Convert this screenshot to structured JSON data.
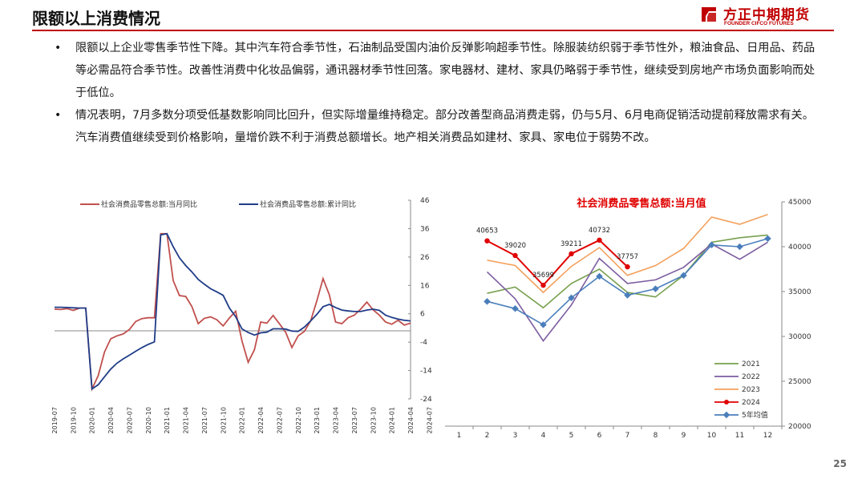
{
  "header": {
    "title": "限额以上消费情况",
    "logo_cn": "方正中期期货",
    "logo_en": "FOUNDER CIFCO FUTURES"
  },
  "bullets": [
    {
      "text": "限额以上企业零售季节性下降。其中汽车符合季节性，石油制品受国内油价反弹影响超季节性。除服装纺织弱于季节性外，粮油食品、日用品、药品等必需品符合季节性。改善性消费中化妆品偏弱，通讯器材季节性回落。家电器材、建材、家具仍略弱于季节性，继续受到房地产市场负面影响而处于低位。"
    },
    {
      "text": "情况表明，7月多数分项受低基数影响同比回升，但实际增量维持稳定。部分改善型商品消费走弱，仍与5月、6月电商促销活动提前释放需求有关。汽车消费值继续受到价格影响，量增价跌不利于消费总额增长。地产相关消费品如建材、家具、家电位于弱势不改。"
    }
  ],
  "page_number": "25",
  "chart_data": [
    {
      "type": "line",
      "title": "",
      "x_ticks": [
        "2019-07",
        "2019-10",
        "2020-01",
        "2020-04",
        "2020-07",
        "2020-10",
        "2021-01",
        "2021-04",
        "2021-07",
        "2021-10",
        "2022-01",
        "2022-04",
        "2022-07",
        "2022-10",
        "2023-01",
        "2023-04",
        "2023-07",
        "2023-10",
        "2024-01",
        "2024-04",
        "2024-07"
      ],
      "ylim": [
        -24,
        46
      ],
      "y_ticks": [
        "46",
        "36",
        "26",
        "16",
        "6",
        "-4",
        "-14",
        "-24"
      ],
      "y_axis_side": "right",
      "legend_position": "top",
      "series": [
        {
          "name": "社会消费品零售总额:当月同比",
          "color": "#c0504d",
          "values": [
            7.6,
            7.5,
            7.8,
            7.2,
            8.0,
            8.0,
            -20.5,
            -15.8,
            -7.5,
            -2.8,
            -1.8,
            -1.1,
            0.5,
            3.3,
            4.3,
            4.6,
            4.6,
            34.2,
            34.2,
            17.7,
            12.4,
            12.1,
            8.5,
            2.5,
            4.4,
            4.9,
            3.9,
            1.7,
            4.5,
            6.9,
            -3.5,
            -11.1,
            -6.7,
            3.1,
            2.7,
            5.4,
            2.5,
            -0.5,
            -5.9,
            -1.8,
            -0.2,
            3.5,
            10.6,
            18.4,
            12.7,
            3.1,
            2.5,
            4.6,
            5.5,
            7.6,
            10.1,
            7.4,
            5.5,
            3.1,
            2.3,
            3.7,
            2.0,
            2.7
          ]
        },
        {
          "name": "社会消费品零售总额:累计同比",
          "color": "#1f3c88",
          "values": [
            8.3,
            8.3,
            8.2,
            8.1,
            8.0,
            8.0,
            -20.5,
            -19.0,
            -16.2,
            -13.5,
            -11.4,
            -9.9,
            -8.6,
            -7.2,
            -5.9,
            -4.8,
            -3.9,
            33.8,
            34.2,
            29.6,
            25.7,
            23.0,
            20.7,
            18.1,
            16.4,
            14.8,
            13.7,
            12.5,
            8.0,
            5.0,
            0.7,
            -0.6,
            -1.5,
            -0.7,
            -0.5,
            0.7,
            0.7,
            0.6,
            -0.1,
            -0.2,
            1.3,
            3.5,
            5.8,
            8.5,
            9.3,
            8.2,
            7.3,
            7.0,
            6.8,
            6.8,
            7.3,
            7.6,
            7.2,
            5.5,
            4.7,
            4.1,
            3.7,
            3.5
          ]
        }
      ]
    },
    {
      "type": "line",
      "title": "社会消费品零售总额:当月值",
      "categories": [
        "1",
        "2",
        "3",
        "4",
        "5",
        "6",
        "7",
        "8",
        "9",
        "10",
        "11",
        "12"
      ],
      "ylim": [
        20000,
        45000
      ],
      "y_ticks": [
        "45000",
        "40000",
        "35000",
        "30000",
        "25000",
        "20000"
      ],
      "y_axis_side": "right",
      "legend_position": "bottom-right",
      "series": [
        {
          "name": "2021",
          "color": "#77a04d",
          "values": [
            null,
            34800,
            35500,
            33200,
            35900,
            37500,
            34900,
            34400,
            36800,
            40500,
            41000,
            41300
          ]
        },
        {
          "name": "2022",
          "color": "#7c5da0",
          "values": [
            null,
            37200,
            34200,
            29500,
            33500,
            38700,
            35900,
            36300,
            37700,
            40300,
            38600,
            40500
          ]
        },
        {
          "name": "2023",
          "color": "#f4a15d",
          "values": [
            null,
            38500,
            37900,
            34900,
            37800,
            39900,
            36800,
            37900,
            39800,
            43300,
            42500,
            43600
          ]
        },
        {
          "name": "2024",
          "color": "#e00000",
          "values": [
            null,
            40653,
            39020,
            35699,
            39211,
            40732,
            37757,
            null,
            null,
            null,
            null,
            null
          ],
          "labels": [
            "",
            "40653",
            "39020",
            "35699",
            "39211",
            "40732",
            "37757",
            "",
            "",
            "",
            "",
            ""
          ]
        },
        {
          "name": "5年均值",
          "color": "#4a7ebb",
          "values": [
            null,
            33900,
            33100,
            31300,
            34300,
            36700,
            34600,
            35300,
            36800,
            40200,
            40000,
            40900
          ]
        }
      ]
    }
  ]
}
